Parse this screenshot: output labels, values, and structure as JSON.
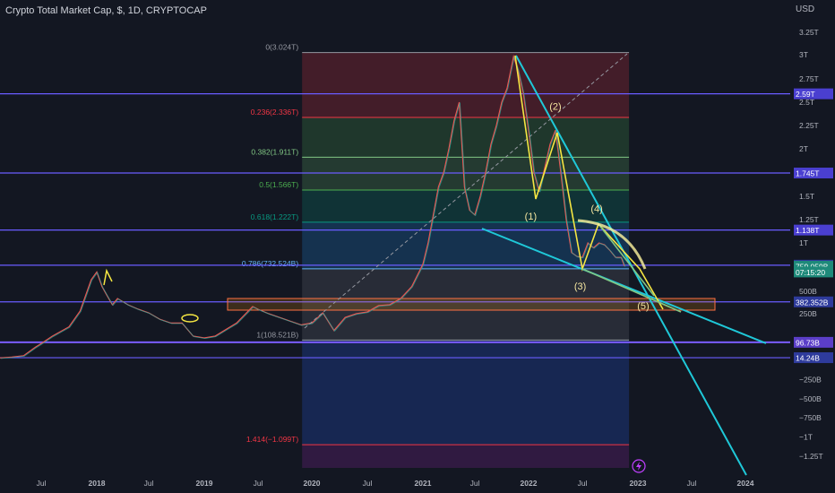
{
  "header": {
    "title": "Crypto Total Market Cap, $, 1D, CRYPTOCAP"
  },
  "y_axis": {
    "unit": "USD",
    "ticks": [
      {
        "label": "3.25T",
        "v": 3.25
      },
      {
        "label": "3T",
        "v": 3.0
      },
      {
        "label": "2.75T",
        "v": 2.75
      },
      {
        "label": "2.5T",
        "v": 2.5
      },
      {
        "label": "2.25T",
        "v": 2.25
      },
      {
        "label": "2T",
        "v": 2.0
      },
      {
        "label": "1.5T",
        "v": 1.5
      },
      {
        "label": "1.25T",
        "v": 1.25
      },
      {
        "label": "1T",
        "v": 1.0
      },
      {
        "label": "500B",
        "v": 0.5
      },
      {
        "label": "250B",
        "v": 0.25
      },
      {
        "label": "−250B",
        "v": -0.25
      },
      {
        "label": "−500B",
        "v": -0.5
      },
      {
        "label": "−750B",
        "v": -0.75
      },
      {
        "label": "−1T",
        "v": -1.0
      },
      {
        "label": "−1.25T",
        "v": -1.25
      }
    ]
  },
  "x_axis": {
    "ticks": [
      {
        "label": "Jul",
        "t": 2017.5,
        "bold": false
      },
      {
        "label": "2018",
        "t": 2018.0,
        "bold": true
      },
      {
        "label": "Jul",
        "t": 2018.5,
        "bold": false
      },
      {
        "label": "2019",
        "t": 2019.0,
        "bold": true
      },
      {
        "label": "Jul",
        "t": 2019.5,
        "bold": false
      },
      {
        "label": "2020",
        "t": 2020.0,
        "bold": true
      },
      {
        "label": "Jul",
        "t": 2020.5,
        "bold": false
      },
      {
        "label": "2021",
        "t": 2021.0,
        "bold": true
      },
      {
        "label": "Jul",
        "t": 2021.5,
        "bold": false
      },
      {
        "label": "2022",
        "t": 2022.0,
        "bold": true
      },
      {
        "label": "Jul",
        "t": 2022.5,
        "bold": false
      },
      {
        "label": "2023",
        "t": 2023.0,
        "bold": true
      },
      {
        "label": "Jul",
        "t": 2023.5,
        "bold": false
      },
      {
        "label": "2024",
        "t": 2024.0,
        "bold": true
      }
    ]
  },
  "price_labels": [
    {
      "label": "2.59T",
      "v": 2.59,
      "color": "#4a3fd0"
    },
    {
      "label": "1.745T",
      "v": 1.745,
      "color": "#4a3fd0"
    },
    {
      "label": "1.138T",
      "v": 1.138,
      "color": "#4a3fd0"
    },
    {
      "label": "769.869B",
      "v": 0.7699,
      "color": "#2e3b9c"
    },
    {
      "label": "759.059B",
      "v": 0.759,
      "color": "#1e8a7a"
    },
    {
      "label": "07:15:20",
      "v": 0.7,
      "color": "#1e8a7a"
    },
    {
      "label": "382.352B",
      "v": 0.3824,
      "color": "#2e3b9c"
    },
    {
      "label": "96.73B",
      "v": 0.0967,
      "color": "#5b3ec8"
    },
    {
      "label": "14.24B",
      "v": 0.0142,
      "color": "#2e3b9c"
    }
  ],
  "horizontal_lines": [
    {
      "v": 2.59,
      "color": "#6a5cff"
    },
    {
      "v": 1.745,
      "color": "#6a5cff"
    },
    {
      "v": 1.138,
      "color": "#6a5cff"
    },
    {
      "v": 0.7699,
      "color": "#6a5cff"
    },
    {
      "v": 0.3824,
      "color": "#6a5cff"
    },
    {
      "v": 0.0967,
      "color": "#7a5cff"
    },
    {
      "v": 0.0142,
      "color": "#6a5cff"
    }
  ],
  "fib": {
    "t_start": 2019.91,
    "t_end": 2022.92,
    "levels": [
      {
        "label": "0(3.024T)",
        "v": 3.024,
        "color": "#9598a1"
      },
      {
        "label": "0.236(2.336T)",
        "v": 2.336,
        "color": "#f23645"
      },
      {
        "label": "0.382(1.911T)",
        "v": 1.911,
        "color": "#81c784"
      },
      {
        "label": "0.5(1.566T)",
        "v": 1.566,
        "color": "#4caf50"
      },
      {
        "label": "0.618(1.222T)",
        "v": 1.222,
        "color": "#089981"
      },
      {
        "label": "0.786(732.524B)",
        "v": 0.7325,
        "color": "#64b5f6"
      },
      {
        "label": "1(108.521B)",
        "v": 0.1085,
        "color": "#9598a1"
      },
      {
        "label": "1.414(−1.099T)",
        "v": -1.099,
        "color": "#f23645"
      }
    ],
    "zones": [
      {
        "from": 3.024,
        "to": 2.336,
        "color": "#f23645"
      },
      {
        "from": 2.336,
        "to": 1.911,
        "color": "#4caf50"
      },
      {
        "from": 1.911,
        "to": 1.566,
        "color": "#66bb6a"
      },
      {
        "from": 1.566,
        "to": 1.222,
        "color": "#089981"
      },
      {
        "from": 1.222,
        "to": 0.7325,
        "color": "#2196f3"
      },
      {
        "from": 0.7325,
        "to": 0.1085,
        "color": "#787b86"
      },
      {
        "from": 0.1085,
        "to": -1.099,
        "color": "#2962ff"
      },
      {
        "from": -1.099,
        "to": -1.35,
        "color": "#9c27b0"
      }
    ]
  },
  "waves": [
    {
      "label": "(1)",
      "t": 2022.02,
      "v": 1.25
    },
    {
      "label": "(2)",
      "t": 2022.25,
      "v": 2.42
    },
    {
      "label": "(3)",
      "t": 2022.48,
      "v": 0.52
    },
    {
      "label": "(4)",
      "t": 2022.63,
      "v": 1.33
    },
    {
      "label": "(5)",
      "t": 2023.05,
      "v": 0.3
    }
  ],
  "chart_data": {
    "type": "line",
    "title": "Crypto Total Market Cap, $, 1D, CRYPTOCAP",
    "ylabel": "USD",
    "ylim": [
      -1.35,
      3.45
    ],
    "xlim": [
      2016.8,
      2024.55
    ],
    "series": [
      {
        "t": [
          2016.8,
          2017.0,
          2017.2,
          2017.4,
          2017.5,
          2017.6,
          2017.75,
          2017.85,
          2017.95,
          2018.0,
          2018.05,
          2018.1,
          2018.15,
          2018.2,
          2018.3,
          2018.4,
          2018.5,
          2018.6,
          2018.7,
          2018.8,
          2018.9,
          2019.0,
          2019.1,
          2019.3,
          2019.45,
          2019.5,
          2019.6,
          2019.8,
          2019.9,
          2020.0,
          2020.1,
          2020.2,
          2020.3,
          2020.4,
          2020.5,
          2020.6,
          2020.7,
          2020.8,
          2020.9,
          2021.0,
          2021.05,
          2021.1,
          2021.15,
          2021.2,
          2021.25,
          2021.3,
          2021.35,
          2021.4,
          2021.45,
          2021.5,
          2021.55,
          2021.6,
          2021.65,
          2021.7,
          2021.75,
          2021.8,
          2021.86,
          2021.9,
          2021.95,
          2022.0,
          2022.05,
          2022.1,
          2022.15,
          2022.2,
          2022.25,
          2022.3,
          2022.35,
          2022.4,
          2022.45,
          2022.5,
          2022.55,
          2022.6,
          2022.65,
          2022.7,
          2022.75,
          2022.8,
          2022.85,
          2022.88
        ],
        "v": [
          0.013,
          0.018,
          0.025,
          0.07,
          0.09,
          0.13,
          0.18,
          0.28,
          0.62,
          0.7,
          0.55,
          0.45,
          0.35,
          0.42,
          0.35,
          0.3,
          0.26,
          0.22,
          0.2,
          0.2,
          0.13,
          0.12,
          0.13,
          0.2,
          0.33,
          0.3,
          0.25,
          0.21,
          0.19,
          0.2,
          0.26,
          0.16,
          0.23,
          0.25,
          0.27,
          0.34,
          0.35,
          0.42,
          0.55,
          0.78,
          1.0,
          1.3,
          1.6,
          1.75,
          2.0,
          2.3,
          2.5,
          1.6,
          1.35,
          1.3,
          1.5,
          1.75,
          2.05,
          2.25,
          2.5,
          2.65,
          2.98,
          2.85,
          2.6,
          2.2,
          1.75,
          1.55,
          1.8,
          2.05,
          2.2,
          1.75,
          1.25,
          0.9,
          0.86,
          0.85,
          1.0,
          0.95,
          1.0,
          0.98,
          0.92,
          0.85,
          0.85,
          0.76
        ]
      }
    ]
  }
}
